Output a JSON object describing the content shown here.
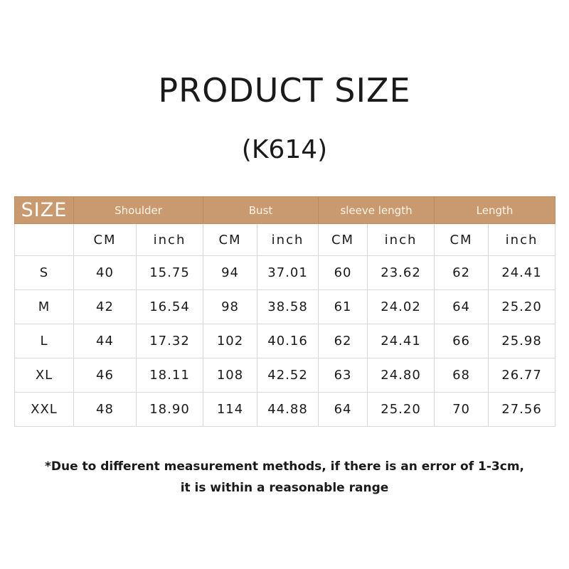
{
  "title": "PRODUCT SIZE",
  "subtitle": "(K614)",
  "table": {
    "size_label": "SIZE",
    "groups": [
      "Shoulder",
      "Bust",
      "sleeve length",
      "Length"
    ],
    "units": [
      "CM",
      "inch",
      "CM",
      "inch",
      "CM",
      "inch",
      "CM",
      "inch"
    ],
    "rows": [
      [
        "S",
        "40",
        "15.75",
        "94",
        "37.01",
        "60",
        "23.62",
        "62",
        "24.41"
      ],
      [
        "M",
        "42",
        "16.54",
        "98",
        "38.58",
        "61",
        "24.02",
        "64",
        "25.20"
      ],
      [
        "L",
        "44",
        "17.32",
        "102",
        "40.16",
        "62",
        "24.41",
        "66",
        "25.98"
      ],
      [
        "XL",
        "46",
        "18.11",
        "108",
        "42.52",
        "63",
        "24.80",
        "68",
        "26.77"
      ],
      [
        "XXL",
        "48",
        "18.90",
        "114",
        "44.88",
        "64",
        "25.20",
        "70",
        "27.56"
      ]
    ]
  },
  "note": {
    "line1": "*Due to different measurement methods, if there is an error of 1-3cm,",
    "line2": "it is within a reasonable range"
  },
  "colors": {
    "header_bg": "#c99a70"
  }
}
